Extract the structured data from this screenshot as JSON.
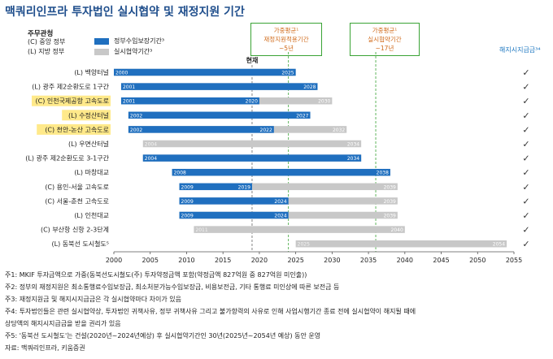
{
  "title": "맥쿼리인프라 투자법인 실시협약 및 재정지원 기간",
  "legend": {
    "heading": "주무관청",
    "codes": [
      "(C) 중앙 정부",
      "(L) 지방 정부"
    ],
    "series": [
      {
        "label": "정부수입보장기간³",
        "color": "#1f6fbf"
      },
      {
        "label": "실시협약기간³",
        "color": "#c8c8c8"
      }
    ]
  },
  "callouts": [
    {
      "lines": [
        "가중평균¹",
        "재정지원적용기간",
        "~5년"
      ]
    },
    {
      "lines": [
        "가중평균¹",
        "실시협약기간",
        "~17년"
      ]
    }
  ],
  "current_label": "현재",
  "refund_header": "해지시지급금³⁴",
  "check_mark": "✓",
  "chart_data": {
    "type": "bar",
    "orientation": "horizontal-range",
    "xlim": [
      2000,
      2055
    ],
    "x_ticks": [
      2000,
      2005,
      2010,
      2015,
      2020,
      2025,
      2030,
      2035,
      2040,
      2045,
      2050,
      2055
    ],
    "current_year": 2019,
    "avg_support_end": 2024,
    "avg_concession_end": 2036,
    "series": [
      {
        "name": "정부수입보장기간³",
        "color": "#1f6fbf"
      },
      {
        "name": "실시협약기간³",
        "color": "#c8c8c8"
      }
    ],
    "rows": [
      {
        "label": "(L) 백양터널",
        "highlight": false,
        "start": 2000,
        "guarantee_end": 2025,
        "concession_end": 2025
      },
      {
        "label": "(L) 광주 제2순환도로 1구간",
        "highlight": false,
        "start": 2001,
        "guarantee_end": 2028,
        "concession_end": 2028
      },
      {
        "label": "(C) 인천국제공항 고속도로",
        "highlight": true,
        "start": 2001,
        "guarantee_end": 2020,
        "concession_end": 2030
      },
      {
        "label": "(L) 수정산터널",
        "highlight": true,
        "start": 2002,
        "guarantee_end": 2027,
        "concession_end": 2027
      },
      {
        "label": "(C) 천안-논산 고속도로",
        "highlight": true,
        "start": 2002,
        "guarantee_end": 2022,
        "concession_end": 2032
      },
      {
        "label": "(L) 우면산터널",
        "highlight": false,
        "start": 2004,
        "guarantee_end": null,
        "concession_end": 2034
      },
      {
        "label": "(L) 광주 제2순환도로 3-1구간",
        "highlight": false,
        "start": 2004,
        "guarantee_end": 2034,
        "concession_end": 2034
      },
      {
        "label": "(L) 마창대교",
        "highlight": false,
        "start": 2008,
        "guarantee_end": 2038,
        "concession_end": 2038
      },
      {
        "label": "(C) 용인-서울 고속도로",
        "highlight": false,
        "start": 2009,
        "guarantee_end": 2019,
        "concession_end": 2039
      },
      {
        "label": "(C) 서울-춘천 고속도로",
        "highlight": false,
        "start": 2009,
        "guarantee_end": 2024,
        "concession_end": 2039
      },
      {
        "label": "(L) 인천대교",
        "highlight": false,
        "start": 2009,
        "guarantee_end": 2024,
        "concession_end": 2039
      },
      {
        "label": "(C) 부산항 신항 2-3단계",
        "highlight": false,
        "start": 2011,
        "guarantee_end": null,
        "concession_end": 2040
      },
      {
        "label": "(L) 동북선 도시철도⁵",
        "highlight": false,
        "start": 2025,
        "guarantee_end": null,
        "concession_end": 2054
      }
    ]
  },
  "notes": [
    "주1: MKIF 투자금액으로 가중(동북선도시철도(주) 투자약정금액 포함(약정금액 827억원 중 827억원 미인출))",
    "주2: 정부의 재정지원은 최소통행료수입보장금, 최소처분가능수입보장금, 비용보전금, 기타 통행료 미인상에 따른 보전금 등",
    "주3: 재정지원금 및 해지시지급금은 각 실시협약마다 차이가 있음",
    "주4: 투자법인들은 관련 실시협약상, 투자법인 귀책사유, 정부 귀책사유 그리고 불가항력의 사유로 인해 사업시행기간 종료 전에 실시협약이 해지될 때에",
    "       상당액의 해지시지급금을 받을 권리가 있음",
    "주5: '동북선 도시철도'는 건설(2020년~2024년예상) 후 실시협약기간인 30년(2025년~2054년 예상) 동안 운영",
    "자료: 맥쿼리인프라, 키움증권"
  ]
}
